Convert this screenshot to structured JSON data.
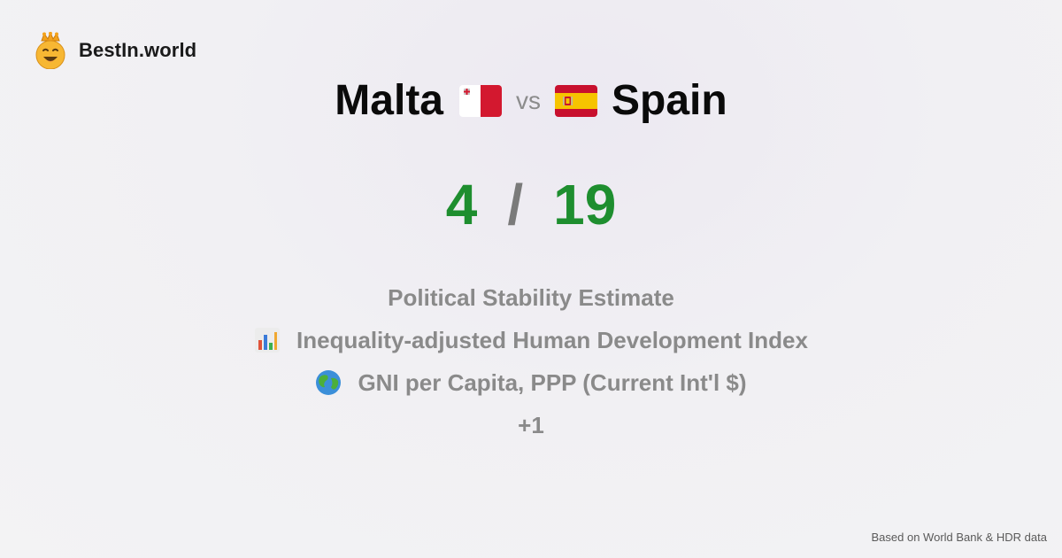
{
  "brand": {
    "name": "BestIn.world",
    "logo_icon": "crowned-smiley-icon"
  },
  "comparison": {
    "left": {
      "country": "Malta",
      "flag_icon": "malta-flag-icon"
    },
    "separator": "vs",
    "right": {
      "country": "Spain",
      "flag_icon": "spain-flag-icon"
    }
  },
  "score": {
    "left": "4",
    "separator": "/",
    "right": "19"
  },
  "metrics": [
    {
      "label": "Political Stability Estimate",
      "icon": ""
    },
    {
      "label": "Inequality-adjusted Human Development Index",
      "icon": "bar-chart-icon"
    },
    {
      "label": "GNI per Capita, PPP (Current Int'l $)",
      "icon": "globe-icon"
    },
    {
      "label": "+1",
      "icon": ""
    }
  ],
  "footer": {
    "source": "Based on World Bank & HDR data"
  },
  "colors": {
    "score": "#1e8e2f",
    "muted": "#8a8a8a"
  }
}
